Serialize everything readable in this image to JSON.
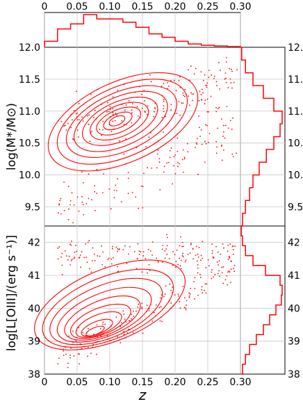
{
  "chart_data": [
    {
      "type": "histogram",
      "panel": "top-marginal",
      "x_ticks": [
        "0",
        "0.05",
        "0.10",
        "0.15",
        "0.20",
        "0.25",
        "0.30"
      ],
      "xlim": [
        0,
        0.3
      ],
      "bin_edges": [
        0,
        0.02,
        0.04,
        0.06,
        0.08,
        0.1,
        0.12,
        0.14,
        0.16,
        0.18,
        0.2,
        0.22,
        0.24,
        0.26,
        0.28,
        0.3
      ],
      "relative_counts": [
        0.18,
        0.55,
        0.7,
        0.98,
        0.85,
        0.85,
        0.75,
        0.6,
        0.4,
        0.3,
        0.18,
        0.1,
        0.06,
        0.04,
        0.02
      ],
      "color": "#ff0000"
    },
    {
      "type": "scatter+contour",
      "panel": "stellar-mass-vs-redshift",
      "xlabel": "z",
      "ylabel": "log(M*/M⊙)",
      "xlim": [
        0,
        0.3
      ],
      "ylim": [
        9.2,
        12.0
      ],
      "y_ticks": [
        "9.5",
        "10.0",
        "10.5",
        "11.0",
        "11.5",
        "12.0"
      ],
      "color": "#ff0000",
      "contour_peak": {
        "z": 0.11,
        "log_mass": 10.85
      }
    },
    {
      "type": "histogram",
      "panel": "stellar-mass-marginal",
      "orientation": "horizontal",
      "bin_edges": [
        9.2,
        9.4,
        9.6,
        9.8,
        10.0,
        10.2,
        10.4,
        10.6,
        10.8,
        11.0,
        11.2,
        11.4,
        11.6,
        11.8,
        12.0
      ],
      "relative_counts": [
        0.05,
        0.12,
        0.22,
        0.3,
        0.45,
        0.62,
        0.8,
        0.95,
        1.0,
        0.8,
        0.55,
        0.3,
        0.12,
        0.03
      ],
      "color": "#ff0000"
    },
    {
      "type": "scatter+contour",
      "panel": "oiii-luminosity-vs-redshift",
      "xlabel": "z",
      "ylabel": "log[L[OIII]/(erg s⁻¹)]",
      "xlim": [
        0,
        0.3
      ],
      "ylim": [
        38,
        42.5
      ],
      "x_ticks": [
        "0",
        "0.05",
        "0.10",
        "0.15",
        "0.20",
        "0.25",
        "0.30"
      ],
      "y_ticks": [
        "38",
        "39",
        "40",
        "41",
        "42"
      ],
      "color": "#ff0000",
      "contour_peak": {
        "z": 0.06,
        "log_L_OIII": 39.4
      }
    },
    {
      "type": "histogram",
      "panel": "oiii-luminosity-marginal",
      "orientation": "horizontal",
      "bin_edges": [
        38.0,
        38.3,
        38.6,
        38.9,
        39.2,
        39.5,
        39.8,
        40.1,
        40.4,
        40.7,
        41.0,
        41.3,
        41.6,
        41.9,
        42.2,
        42.5
      ],
      "relative_counts": [
        0.05,
        0.12,
        0.22,
        0.38,
        0.55,
        0.7,
        0.85,
        0.98,
        1.0,
        0.95,
        0.6,
        0.3,
        0.12,
        0.05,
        0.02
      ],
      "color": "#ff0000"
    }
  ],
  "axes_labels": {
    "y_top": "log(M*/M⊙)",
    "y_bottom": "log[L[OIII]/(erg s⁻¹)]",
    "x": "z"
  }
}
